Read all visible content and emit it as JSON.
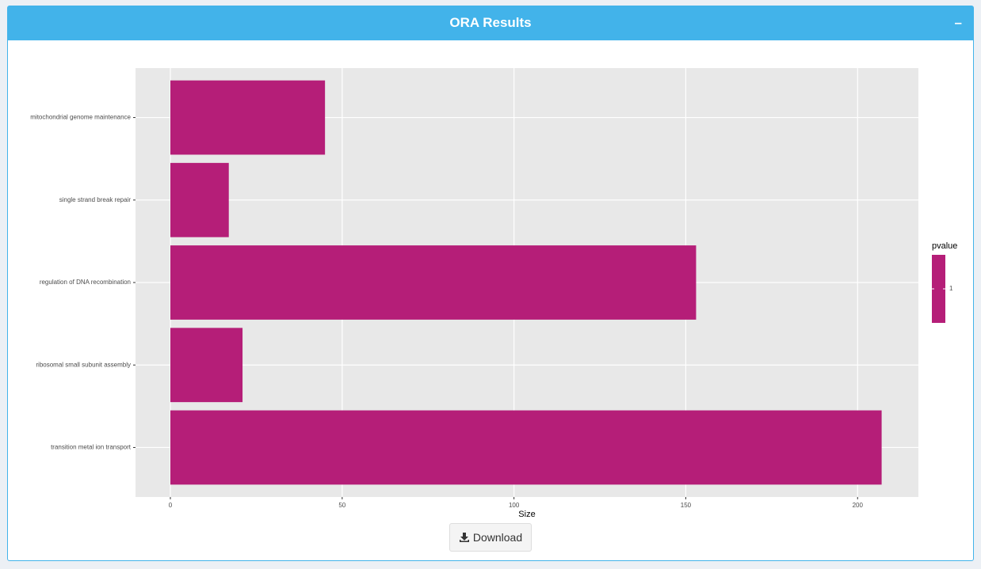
{
  "panel": {
    "title": "ORA Results",
    "collapse": "–"
  },
  "chart_data": {
    "type": "bar",
    "orientation": "horizontal",
    "categories": [
      "mitochondrial genome maintenance",
      "single strand break repair",
      "regulation of DNA recombination",
      "ribosomal small subunit assembly",
      "transition metal ion transport"
    ],
    "values": [
      45,
      17,
      153,
      21,
      207
    ],
    "color": "#b51e78",
    "xlabel": "Size",
    "xlim": [
      -10.15,
      217.7
    ],
    "xticks": [
      0,
      50,
      100,
      150,
      200
    ],
    "grid": true,
    "legend": {
      "title": "pvalue",
      "ticks": [
        1
      ]
    }
  },
  "download": {
    "label": "Download"
  }
}
